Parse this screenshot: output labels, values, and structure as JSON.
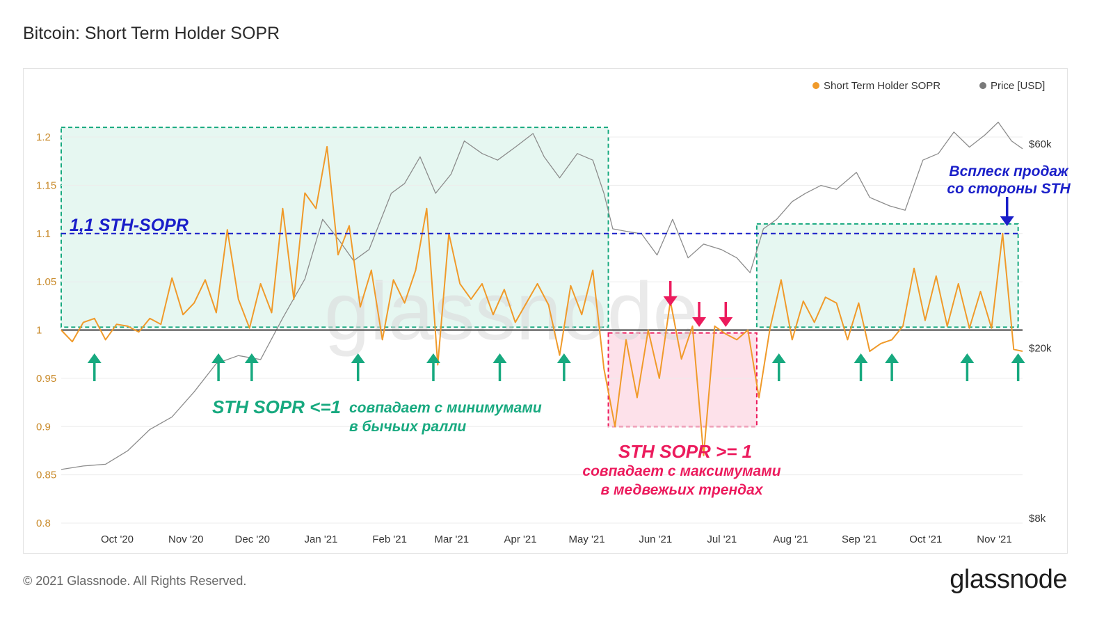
{
  "title": "Bitcoin: Short Term Holder SOPR",
  "footer": "© 2021 Glassnode. All Rights Reserved.",
  "logo": "glassnode",
  "watermark": "glassnode",
  "colors": {
    "sopr": "#f09a2a",
    "price": "#8c8c8c",
    "green": "#17a97f",
    "green_fill": "#e6f7f1",
    "pink": "#ec1b5d",
    "pink_fill": "#fde1ea",
    "blue": "#1a1fc9",
    "baseline": "#555555"
  },
  "chart_data": {
    "type": "line",
    "title": "Bitcoin: Short Term Holder SOPR",
    "legend": {
      "placement": "top-right",
      "entries": [
        "Short Term Holder SOPR",
        "Price [USD]"
      ]
    },
    "x_ticks": [
      "Oct '20",
      "Nov '20",
      "Dec '20",
      "Jan '21",
      "Feb '21",
      "Mar '21",
      "Apr '21",
      "May '21",
      "Jun '21",
      "Jul '21",
      "Aug '21",
      "Sep '21",
      "Oct '21",
      "Nov '21"
    ],
    "x_range": [
      "2020-09-12",
      "2021-11-20"
    ],
    "y_left": {
      "ticks": [
        "0.8",
        "0.85",
        "0.9",
        "0.95",
        "1",
        "1.05",
        "1.1",
        "1.15",
        "1.2"
      ],
      "range": [
        0.8,
        1.2
      ]
    },
    "y_right": {
      "scale": "log",
      "ticks": [
        "$8k",
        "$20k",
        "$60k"
      ],
      "values": [
        8000,
        20000,
        60000
      ]
    },
    "grid": true,
    "series": [
      {
        "name": "Short Term Holder SOPR",
        "axis": "left",
        "x": [
          "2020-09-12",
          "2020-09-17",
          "2020-09-22",
          "2020-09-27",
          "2020-10-02",
          "2020-10-07",
          "2020-10-12",
          "2020-10-17",
          "2020-10-22",
          "2020-10-27",
          "2020-11-01",
          "2020-11-06",
          "2020-11-11",
          "2020-11-16",
          "2020-11-21",
          "2020-11-26",
          "2020-12-01",
          "2020-12-06",
          "2020-12-11",
          "2020-12-16",
          "2020-12-21",
          "2020-12-26",
          "2020-12-31",
          "2021-01-05",
          "2021-01-10",
          "2021-01-15",
          "2021-01-20",
          "2021-01-25",
          "2021-01-30",
          "2021-02-04",
          "2021-02-09",
          "2021-02-14",
          "2021-02-19",
          "2021-02-24",
          "2021-03-01",
          "2021-03-06",
          "2021-03-11",
          "2021-03-16",
          "2021-03-21",
          "2021-03-26",
          "2021-03-31",
          "2021-04-05",
          "2021-04-10",
          "2021-04-15",
          "2021-04-20",
          "2021-04-25",
          "2021-04-30",
          "2021-05-05",
          "2021-05-10",
          "2021-05-15",
          "2021-05-20",
          "2021-05-25",
          "2021-05-30",
          "2021-06-04",
          "2021-06-09",
          "2021-06-14",
          "2021-06-19",
          "2021-06-24",
          "2021-06-29",
          "2021-07-04",
          "2021-07-09",
          "2021-07-14",
          "2021-07-19",
          "2021-07-24",
          "2021-07-29",
          "2021-08-03",
          "2021-08-08",
          "2021-08-13",
          "2021-08-18",
          "2021-08-23",
          "2021-08-28",
          "2021-09-02",
          "2021-09-07",
          "2021-09-12",
          "2021-09-17",
          "2021-09-22",
          "2021-09-27",
          "2021-10-02",
          "2021-10-07",
          "2021-10-12",
          "2021-10-17",
          "2021-10-22",
          "2021-10-27",
          "2021-11-01",
          "2021-11-06",
          "2021-11-11",
          "2021-11-16",
          "2021-11-20"
        ],
        "values": [
          1.0,
          0.988,
          1.008,
          1.012,
          0.99,
          1.006,
          1.004,
          0.998,
          1.012,
          1.006,
          1.054,
          1.016,
          1.028,
          1.052,
          1.018,
          1.104,
          1.032,
          1.002,
          1.048,
          1.018,
          1.126,
          1.032,
          1.142,
          1.126,
          1.19,
          1.078,
          1.108,
          1.024,
          1.062,
          0.99,
          1.052,
          1.028,
          1.062,
          1.126,
          0.964,
          1.1,
          1.048,
          1.032,
          1.048,
          1.016,
          1.042,
          1.008,
          1.028,
          1.048,
          1.026,
          0.974,
          1.046,
          1.016,
          1.062,
          0.96,
          0.9,
          0.99,
          0.93,
          1.0,
          0.95,
          1.03,
          0.97,
          1.004,
          0.87,
          1.004,
          0.996,
          0.99,
          1.0,
          0.93,
          1.002,
          1.052,
          0.99,
          1.03,
          1.008,
          1.034,
          1.028,
          0.99,
          1.028,
          0.978,
          0.986,
          0.99,
          1.004,
          1.064,
          1.01,
          1.056,
          1.004,
          1.048,
          1.002,
          1.04,
          1.002,
          1.1,
          0.98,
          0.978
        ]
      },
      {
        "name": "Price [USD]",
        "axis": "right",
        "x": [
          "2020-09-12",
          "2020-09-22",
          "2020-10-02",
          "2020-10-12",
          "2020-10-22",
          "2020-11-01",
          "2020-11-11",
          "2020-11-21",
          "2020-12-01",
          "2020-12-11",
          "2020-12-21",
          "2020-12-31",
          "2021-01-08",
          "2021-01-15",
          "2021-01-22",
          "2021-01-29",
          "2021-02-08",
          "2021-02-14",
          "2021-02-21",
          "2021-02-28",
          "2021-03-07",
          "2021-03-13",
          "2021-03-21",
          "2021-03-28",
          "2021-04-05",
          "2021-04-13",
          "2021-04-18",
          "2021-04-25",
          "2021-05-03",
          "2021-05-10",
          "2021-05-15",
          "2021-05-19",
          "2021-05-25",
          "2021-06-01",
          "2021-06-08",
          "2021-06-15",
          "2021-06-22",
          "2021-06-29",
          "2021-07-07",
          "2021-07-14",
          "2021-07-20",
          "2021-07-26",
          "2021-08-01",
          "2021-08-08",
          "2021-08-14",
          "2021-08-21",
          "2021-08-28",
          "2021-09-06",
          "2021-09-12",
          "2021-09-21",
          "2021-09-28",
          "2021-10-06",
          "2021-10-13",
          "2021-10-20",
          "2021-10-27",
          "2021-11-03",
          "2021-11-09",
          "2021-11-15",
          "2021-11-20"
        ],
        "values": [
          10400,
          10600,
          10700,
          11500,
          12900,
          13800,
          15800,
          18400,
          19200,
          18800,
          23500,
          29000,
          40000,
          36000,
          32000,
          34000,
          46000,
          48500,
          56000,
          46000,
          51000,
          61000,
          57000,
          55000,
          59000,
          63500,
          56000,
          50000,
          57000,
          55000,
          46000,
          38000,
          37500,
          37000,
          33000,
          40000,
          32500,
          35000,
          34000,
          32500,
          30000,
          38000,
          40000,
          44000,
          46000,
          48000,
          47000,
          51500,
          45000,
          43000,
          42000,
          55000,
          57000,
          64000,
          59000,
          63000,
          67500,
          61000,
          58500
        ]
      }
    ],
    "annotations": {
      "hline": {
        "value": 1.1,
        "label": "1,1 STH-SOPR"
      },
      "green_box_1": {
        "from": "2020-09-12",
        "to": "2021-05-17",
        "y_from": 1.003,
        "y_to": 1.21
      },
      "green_box_2": {
        "from": "2021-07-23",
        "to": "2021-11-18",
        "y_from": 1.003,
        "y_to": 1.11
      },
      "pink_box": {
        "from": "2021-05-17",
        "to": "2021-07-23",
        "y_from": 0.9,
        "y_to": 0.997
      },
      "green_text_main": "STH SOPR <=1",
      "green_text_line1": "совпадает с минимумами",
      "green_text_line2": "в бычьих ралли",
      "pink_text_main": "STH SOPR >= 1",
      "pink_text_line1": "совпадает с максимумами",
      "pink_text_line2": "в медвежьих трендах",
      "blue_text_line1": "Всплеск продаж",
      "blue_text_line2": "со стороны STH",
      "green_arrows": [
        "2020-09-27",
        "2020-11-22",
        "2020-12-07",
        "2021-01-24",
        "2021-02-27",
        "2021-03-29",
        "2021-04-27",
        "2021-08-02",
        "2021-09-08",
        "2021-09-22",
        "2021-10-26",
        "2021-11-18"
      ],
      "pink_arrows": [
        "2021-06-14",
        "2021-06-27",
        "2021-07-09"
      ],
      "blue_arrow": "2021-11-13"
    }
  }
}
